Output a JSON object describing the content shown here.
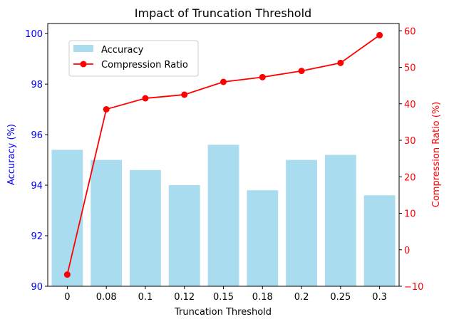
{
  "chart_data": {
    "type": "bar+line",
    "title": "Impact of Truncation Threshold",
    "xlabel": "Truncation Threshold",
    "categories": [
      "0",
      "0.08",
      "0.1",
      "0.12",
      "0.15",
      "0.18",
      "0.2",
      "0.25",
      "0.3"
    ],
    "left_axis": {
      "label": "Accuracy (%)",
      "range": [
        90,
        100.4
      ],
      "ticks": [
        90,
        92,
        94,
        96,
        98,
        100
      ],
      "color": "#0000ff"
    },
    "right_axis": {
      "label": "Compression Ratio (%)",
      "range": [
        -10,
        62
      ],
      "ticks": [
        -10,
        0,
        10,
        20,
        30,
        40,
        50,
        60
      ],
      "color": "#ff0000"
    },
    "series": [
      {
        "name": "Accuracy",
        "kind": "bar",
        "axis": "left",
        "color": "#a8dcee",
        "values": [
          95.4,
          95.0,
          94.6,
          94.0,
          95.6,
          93.8,
          95.0,
          95.2,
          93.6
        ]
      },
      {
        "name": "Compression Ratio",
        "kind": "line",
        "axis": "right",
        "color": "#ff0000",
        "marker": "circle",
        "values": [
          -6.8,
          38.5,
          41.5,
          42.5,
          46.0,
          47.3,
          49.0,
          51.2,
          58.8
        ]
      }
    ],
    "legend_position": "upper-left",
    "grid": false
  }
}
